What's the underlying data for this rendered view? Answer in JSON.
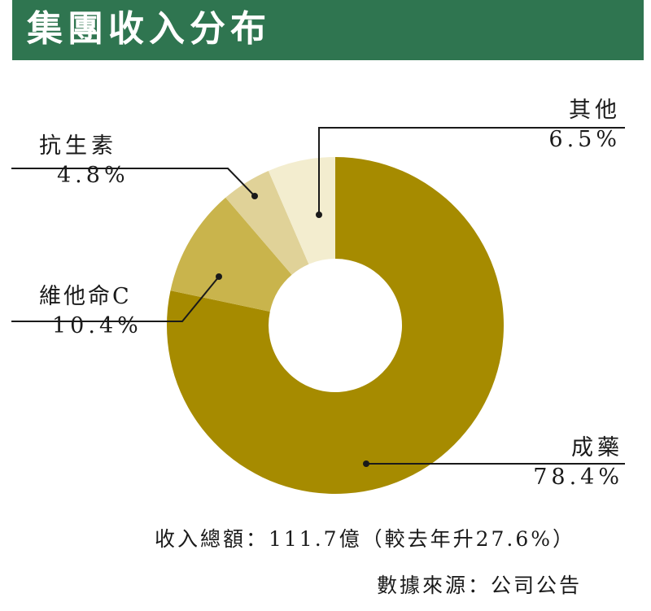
{
  "title": "集團收入分布",
  "chart_data": {
    "type": "pie",
    "title": "集團收入分布",
    "slices": [
      {
        "name": "成藥",
        "value": 78.4,
        "value_label": "78.4%",
        "color": "#a68b00"
      },
      {
        "name": "維他命C",
        "value": 10.4,
        "value_label": "10.4%",
        "color": "#c9b44c"
      },
      {
        "name": "抗生素",
        "value": 4.8,
        "value_label": "4.8%",
        "color": "#e0d298"
      },
      {
        "name": "其他",
        "value": 6.5,
        "value_label": "6.5%",
        "color": "#f3edcf"
      }
    ],
    "donut": true
  },
  "footer": {
    "total": "收入總額：111.7億（較去年升27.6%）",
    "source": "數據來源：公司公告"
  },
  "colors": {
    "banner": "#2f7550",
    "leader": "#1a1a1a"
  }
}
